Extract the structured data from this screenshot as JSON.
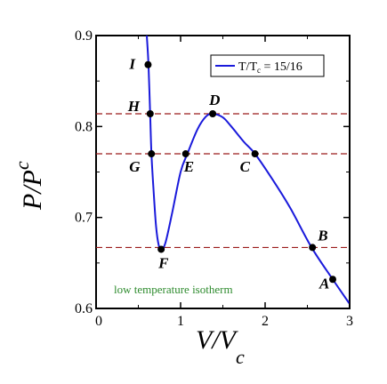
{
  "chart_data": {
    "type": "line",
    "xlabel": "V/V",
    "xlabel_sub": "c",
    "ylabel": "P/P",
    "ylabel_sub": "c",
    "xlim": [
      0,
      3
    ],
    "ylim": [
      0.6,
      0.9
    ],
    "x_ticks": [
      {
        "value": 0,
        "label": "0"
      },
      {
        "value": 1,
        "label": "1"
      },
      {
        "value": 2,
        "label": "2"
      },
      {
        "value": 3,
        "label": "3"
      }
    ],
    "y_ticks": [
      {
        "value": 0.6,
        "label": "0.6"
      },
      {
        "value": 0.7,
        "label": "0.7"
      },
      {
        "value": 0.8,
        "label": "0.8"
      },
      {
        "value": 0.9,
        "label": "0.9"
      }
    ],
    "legend": {
      "position": "top-right",
      "label": "T/T",
      "label_sub": "c",
      "label_suffix": " = 15/16"
    },
    "annotation": "low temperature isotherm",
    "colors": {
      "curve": "#1a1adb",
      "dashed": "#9b1b1b",
      "annotation": "#2e8b2e",
      "points": "#000000"
    },
    "series": [
      {
        "name": "T/Tc = 15/16",
        "points": [
          {
            "x": 0.6,
            "y": 0.9
          },
          {
            "x": 0.62,
            "y": 0.868
          },
          {
            "x": 0.64,
            "y": 0.813
          },
          {
            "x": 0.655,
            "y": 0.77
          },
          {
            "x": 0.68,
            "y": 0.73
          },
          {
            "x": 0.71,
            "y": 0.69
          },
          {
            "x": 0.74,
            "y": 0.67
          },
          {
            "x": 0.77,
            "y": 0.665
          },
          {
            "x": 0.82,
            "y": 0.672
          },
          {
            "x": 0.9,
            "y": 0.705
          },
          {
            "x": 1.0,
            "y": 0.75
          },
          {
            "x": 1.08,
            "y": 0.77
          },
          {
            "x": 1.2,
            "y": 0.797
          },
          {
            "x": 1.3,
            "y": 0.811
          },
          {
            "x": 1.38,
            "y": 0.814
          },
          {
            "x": 1.5,
            "y": 0.81
          },
          {
            "x": 1.6,
            "y": 0.8
          },
          {
            "x": 1.75,
            "y": 0.783
          },
          {
            "x": 1.88,
            "y": 0.77
          },
          {
            "x": 2.1,
            "y": 0.74
          },
          {
            "x": 2.3,
            "y": 0.71
          },
          {
            "x": 2.55,
            "y": 0.667
          },
          {
            "x": 2.8,
            "y": 0.632
          },
          {
            "x": 3.0,
            "y": 0.605
          }
        ]
      }
    ],
    "reference_lines": [
      0.814,
      0.77,
      0.667
    ],
    "labeled_points": [
      {
        "label": "A",
        "x": 2.8,
        "y": 0.632
      },
      {
        "label": "B",
        "x": 2.56,
        "y": 0.667
      },
      {
        "label": "C",
        "x": 1.88,
        "y": 0.77
      },
      {
        "label": "D",
        "x": 1.38,
        "y": 0.814
      },
      {
        "label": "E",
        "x": 1.06,
        "y": 0.77
      },
      {
        "label": "F",
        "x": 0.77,
        "y": 0.665
      },
      {
        "label": "G",
        "x": 0.655,
        "y": 0.77
      },
      {
        "label": "H",
        "x": 0.64,
        "y": 0.814
      },
      {
        "label": "I",
        "x": 0.615,
        "y": 0.868
      }
    ]
  }
}
